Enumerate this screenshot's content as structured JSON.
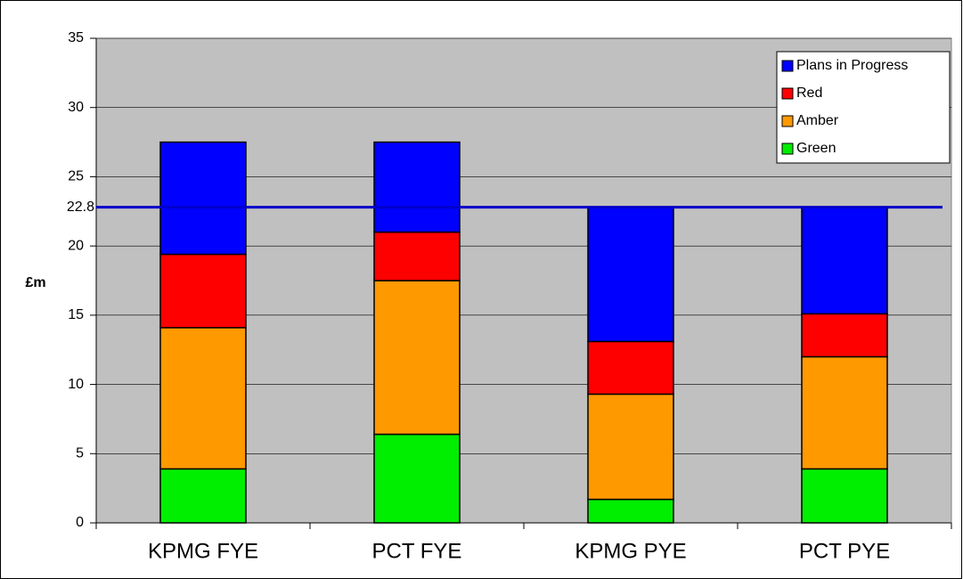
{
  "chart_data": {
    "type": "stacked_bar",
    "y_label": "£m",
    "categories": [
      "KPMG FYE",
      "PCT FYE",
      "KPMG PYE",
      "PCT PYE"
    ],
    "series": [
      {
        "name": "Green",
        "color": "#00ee00",
        "values": [
          3.9,
          6.4,
          1.7,
          3.9
        ]
      },
      {
        "name": "Amber",
        "color": "#ff9900",
        "values": [
          10.2,
          11.1,
          7.6,
          8.1
        ]
      },
      {
        "name": "Red",
        "color": "#ff0000",
        "values": [
          5.3,
          3.5,
          3.8,
          3.1
        ]
      },
      {
        "name": "Plans in Progress",
        "color": "#0000ff",
        "values": [
          8.1,
          6.5,
          9.7,
          7.7
        ]
      }
    ],
    "target_line": {
      "value": 22.8,
      "color": "#0000cc"
    },
    "ylim": [
      0,
      35
    ],
    "yticks": [
      0,
      5,
      10,
      15,
      20,
      25,
      30,
      35
    ],
    "grid": true,
    "legend": "top-right",
    "plot_background": "#c0c0c0"
  }
}
